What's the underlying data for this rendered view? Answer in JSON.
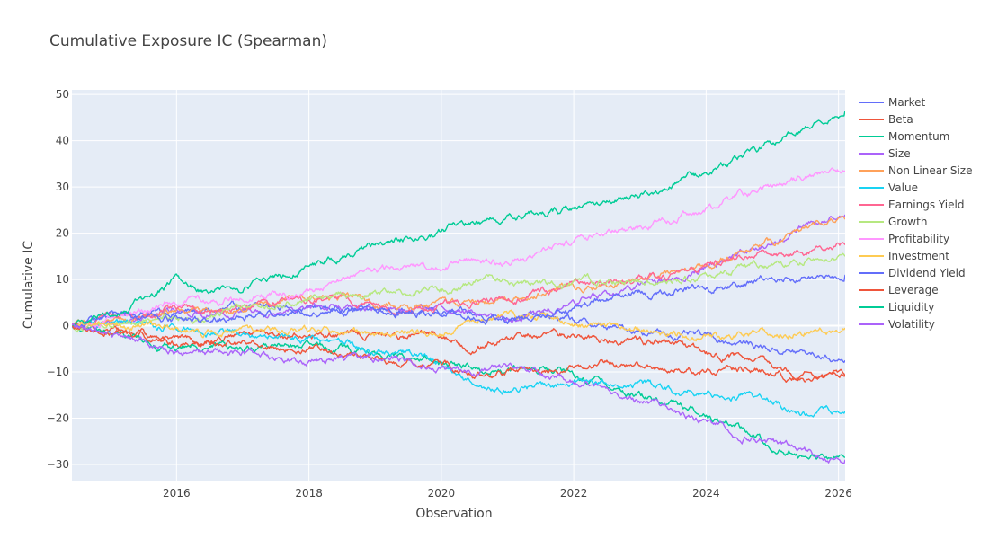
{
  "chart_data": {
    "type": "line",
    "title": "Cumulative Exposure IC (Spearman)",
    "xlabel": "Observation",
    "ylabel": "Cumulative IC",
    "xlim": [
      2014.42,
      2026.1
    ],
    "ylim": [
      -33.5,
      51
    ],
    "x_ticks": [
      "2016",
      "2018",
      "2020",
      "2022",
      "2024",
      "2026"
    ],
    "x_tick_values": [
      2016,
      2018,
      2020,
      2022,
      2024,
      2026
    ],
    "y_ticks": [
      "50",
      "40",
      "30",
      "20",
      "10",
      "0",
      "−10",
      "−20",
      "−30"
    ],
    "y_tick_values": [
      50,
      40,
      30,
      20,
      10,
      0,
      -10,
      -20,
      -30
    ],
    "grid": true,
    "legend_position": "right",
    "plot_background": "#E5ECF6",
    "series": [
      {
        "name": "Market",
        "color": "#636EFA",
        "x": [
          2014.42,
          2015,
          2015.5,
          2016,
          2016.5,
          2017,
          2017.5,
          2018,
          2018.5,
          2019,
          2019.5,
          2020,
          2020.5,
          2021,
          2021.5,
          2022,
          2022.5,
          2023,
          2023.5,
          2024,
          2024.5,
          2025,
          2025.5,
          2026.1
        ],
        "y": [
          0,
          2,
          3,
          3,
          3,
          3.5,
          4,
          4,
          3.5,
          4,
          3,
          3,
          2,
          2.5,
          2,
          1,
          -0.5,
          -1,
          -2,
          -2.5,
          -3.5,
          -5,
          -6,
          -7.5
        ]
      },
      {
        "name": "Beta",
        "color": "#EF553B",
        "x": [
          2014.42,
          2015,
          2015.5,
          2016,
          2016.5,
          2017,
          2017.5,
          2018,
          2018.5,
          2019,
          2019.5,
          2020,
          2020.5,
          2021,
          2021.5,
          2022,
          2022.5,
          2023,
          2023.5,
          2024,
          2024.5,
          2025,
          2025.5,
          2026.1
        ],
        "y": [
          0,
          -1,
          -2,
          -4,
          -3,
          -2,
          -2.5,
          -2,
          -2,
          -2,
          -2,
          -2,
          -5,
          -3,
          -2,
          -2,
          -3,
          -3,
          -4,
          -6,
          -7,
          -9,
          -10.5,
          -10.5
        ]
      },
      {
        "name": "Momentum",
        "color": "#00CC96",
        "x": [
          2014.42,
          2015,
          2015.5,
          2016,
          2016.5,
          2017,
          2017.5,
          2018,
          2018.5,
          2019,
          2019.5,
          2020,
          2020.5,
          2021,
          2021.5,
          2022,
          2022.5,
          2023,
          2023.5,
          2024,
          2024.5,
          2025,
          2025.5,
          2026.1
        ],
        "y": [
          0,
          -2,
          -3,
          -5,
          -4,
          -5,
          -4,
          -5,
          -5,
          -6,
          -7,
          -8,
          -9,
          -10,
          -9,
          -11,
          -13,
          -15,
          -17,
          -19,
          -22,
          -26,
          -28,
          -28.5
        ]
      },
      {
        "name": "Size",
        "color": "#AB63FA",
        "x": [
          2014.42,
          2015,
          2015.5,
          2016,
          2016.5,
          2017,
          2017.5,
          2018,
          2018.5,
          2019,
          2019.5,
          2020,
          2020.5,
          2021,
          2021.5,
          2022,
          2022.5,
          2023,
          2023.5,
          2024,
          2024.5,
          2025,
          2025.5,
          2026.1
        ],
        "y": [
          0,
          1,
          2,
          3,
          3,
          3.5,
          4,
          4.5,
          3.5,
          3.5,
          3.5,
          4,
          3,
          1,
          3,
          5,
          7,
          8.5,
          10,
          13,
          16,
          18,
          22,
          24
        ]
      },
      {
        "name": "Non Linear Size",
        "color": "#FFA15A",
        "x": [
          2014.42,
          2015,
          2015.5,
          2016,
          2016.5,
          2017,
          2017.5,
          2018,
          2018.5,
          2019,
          2019.5,
          2020,
          2020.5,
          2021,
          2021.5,
          2022,
          2022.5,
          2023,
          2023.5,
          2024,
          2024.5,
          2025,
          2025.5,
          2026.1
        ],
        "y": [
          0,
          1,
          2,
          3,
          3.5,
          4,
          5,
          6,
          6,
          5,
          4,
          4.5,
          5,
          6,
          7.5,
          8.5,
          9,
          9.5,
          11,
          13,
          15.5,
          18,
          21,
          23
        ]
      },
      {
        "name": "Value",
        "color": "#19D3F3",
        "x": [
          2014.42,
          2015,
          2015.5,
          2016,
          2016.5,
          2017,
          2017.5,
          2018,
          2018.5,
          2019,
          2019.5,
          2020,
          2020.5,
          2021,
          2021.5,
          2022,
          2022.5,
          2023,
          2023.5,
          2024,
          2024.5,
          2025,
          2025.5,
          2026.1
        ],
        "y": [
          0,
          0,
          -0.5,
          0,
          -1,
          -1.5,
          -2,
          -3,
          -4,
          -5,
          -6,
          -8,
          -13,
          -14,
          -13,
          -13,
          -12,
          -13,
          -14,
          -14,
          -15,
          -16.5,
          -18.5,
          -18.5
        ]
      },
      {
        "name": "Earnings Yield",
        "color": "#FF6692",
        "x": [
          2014.42,
          2015,
          2015.5,
          2016,
          2016.5,
          2017,
          2017.5,
          2018,
          2018.5,
          2019,
          2019.5,
          2020,
          2020.5,
          2021,
          2021.5,
          2022,
          2022.5,
          2023,
          2023.5,
          2024,
          2024.5,
          2025,
          2025.5,
          2026.1
        ],
        "y": [
          0,
          1,
          2,
          3.5,
          4,
          4.5,
          5,
          5.5,
          6,
          4,
          3.5,
          4,
          5,
          5.5,
          7,
          8.5,
          9,
          10,
          11,
          13,
          14.5,
          15.5,
          16.5,
          17.5
        ]
      },
      {
        "name": "Growth",
        "color": "#B6E880",
        "x": [
          2014.42,
          2015,
          2015.5,
          2016,
          2016.5,
          2017,
          2017.5,
          2018,
          2018.5,
          2019,
          2019.5,
          2020,
          2020.5,
          2021,
          2021.5,
          2022,
          2022.5,
          2023,
          2023.5,
          2024,
          2024.5,
          2025,
          2025.5,
          2026.1
        ],
        "y": [
          0,
          0.5,
          1,
          1.5,
          2.5,
          3.5,
          4.5,
          5.5,
          6.5,
          7,
          7.5,
          8,
          9.5,
          10,
          8.5,
          9,
          9.5,
          9.5,
          10.5,
          11,
          12,
          13,
          14,
          15
        ]
      },
      {
        "name": "Profitability",
        "color": "#FF97FF",
        "x": [
          2014.42,
          2015,
          2015.5,
          2016,
          2016.5,
          2017,
          2017.5,
          2018,
          2018.5,
          2019,
          2019.5,
          2020,
          2020.5,
          2021,
          2021.5,
          2022,
          2022.5,
          2023,
          2023.5,
          2024,
          2024.5,
          2025,
          2025.5,
          2026.1
        ],
        "y": [
          0,
          1.5,
          3,
          5.5,
          6,
          6,
          7,
          8,
          10,
          12,
          12.5,
          13,
          14.5,
          13.5,
          16,
          18.5,
          20,
          21,
          23,
          25,
          28,
          30,
          32,
          33.5
        ]
      },
      {
        "name": "Investment",
        "color": "#FECB52",
        "x": [
          2014.42,
          2015,
          2015.5,
          2016,
          2016.5,
          2017,
          2017.5,
          2018,
          2018.5,
          2019,
          2019.5,
          2020,
          2020.5,
          2021,
          2021.5,
          2022,
          2022.5,
          2023,
          2023.5,
          2024,
          2024.5,
          2025,
          2025.5,
          2026.1
        ],
        "y": [
          0,
          0,
          -0.5,
          -1,
          -1.5,
          -1,
          -1.5,
          -1.5,
          -1,
          -1.5,
          -1.5,
          -1,
          1,
          2,
          1.5,
          0.5,
          -0.5,
          -1,
          -1.5,
          -2,
          -2.5,
          -1.5,
          -1,
          -0.5
        ]
      },
      {
        "name": "Dividend Yield",
        "color": "#636EFA",
        "x": [
          2014.42,
          2015,
          2015.5,
          2016,
          2016.5,
          2017,
          2017.5,
          2018,
          2018.5,
          2019,
          2019.5,
          2020,
          2020.5,
          2021,
          2021.5,
          2022,
          2022.5,
          2023,
          2023.5,
          2024,
          2024.5,
          2025,
          2025.5,
          2026.1
        ],
        "y": [
          0,
          2,
          1.5,
          1,
          1,
          2,
          3,
          3,
          3,
          3,
          3,
          3,
          2,
          1,
          2,
          4,
          6,
          7,
          7.5,
          8,
          9,
          10,
          10.5,
          11
        ]
      },
      {
        "name": "Leverage",
        "color": "#EF553B",
        "x": [
          2014.42,
          2015,
          2015.5,
          2016,
          2016.5,
          2017,
          2017.5,
          2018,
          2018.5,
          2019,
          2019.5,
          2020,
          2020.5,
          2021,
          2021.5,
          2022,
          2022.5,
          2023,
          2023.5,
          2024,
          2024.5,
          2025,
          2025.5,
          2026.1
        ],
        "y": [
          0,
          -1,
          -2,
          -3,
          -3.5,
          -4,
          -5,
          -5.5,
          -6,
          -7,
          -7.5,
          -8,
          -10,
          -10,
          -9.5,
          -9,
          -8,
          -8.5,
          -9,
          -9,
          -9.5,
          -10,
          -11,
          -11
        ]
      },
      {
        "name": "Liquidity",
        "color": "#00CC96",
        "x": [
          2014.42,
          2015,
          2015.5,
          2016,
          2016.5,
          2017,
          2017.5,
          2018,
          2018.5,
          2019,
          2019.5,
          2020,
          2020.5,
          2021,
          2021.5,
          2022,
          2022.5,
          2023,
          2023.5,
          2024,
          2024.5,
          2025,
          2025.5,
          2026.1
        ],
        "y": [
          0,
          2,
          5,
          10,
          7.5,
          8,
          10,
          12.5,
          15,
          17,
          19,
          20.5,
          22.5,
          23.5,
          24,
          25.5,
          27,
          28,
          31,
          33,
          36,
          39,
          43,
          46.5
        ]
      },
      {
        "name": "Volatility",
        "color": "#AB63FA",
        "x": [
          2014.42,
          2015,
          2015.5,
          2016,
          2016.5,
          2017,
          2017.5,
          2018,
          2018.5,
          2019,
          2019.5,
          2020,
          2020.5,
          2021,
          2021.5,
          2022,
          2022.5,
          2023,
          2023.5,
          2024,
          2024.5,
          2025,
          2025.5,
          2026.1
        ],
        "y": [
          0,
          -2,
          -3,
          -6,
          -6.5,
          -6.5,
          -7.5,
          -7.5,
          -6.5,
          -6.5,
          -7.5,
          -9,
          -9.5,
          -9,
          -11,
          -12,
          -14,
          -16,
          -18,
          -20,
          -23,
          -25,
          -27.5,
          -29
        ]
      }
    ]
  }
}
